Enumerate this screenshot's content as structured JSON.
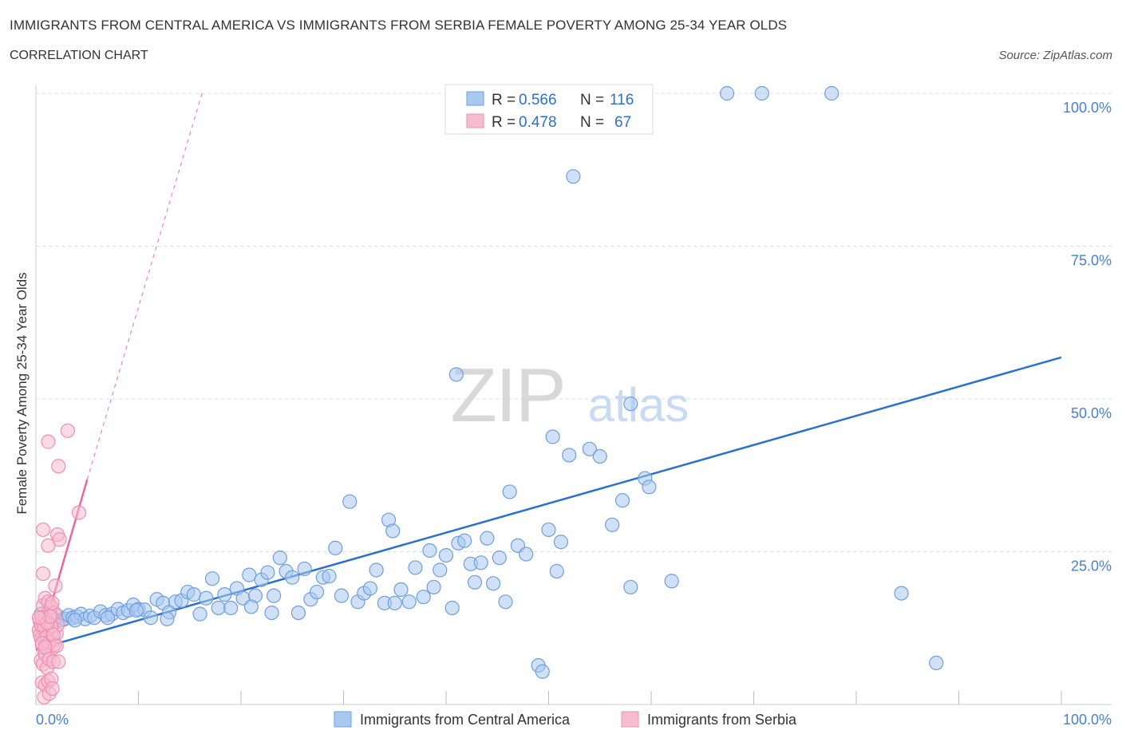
{
  "title": "IMMIGRANTS FROM CENTRAL AMERICA VS IMMIGRANTS FROM SERBIA FEMALE POVERTY AMONG 25-34 YEAR OLDS",
  "subtitle": "CORRELATION CHART",
  "source": "Source: ZipAtlas.com",
  "watermark": {
    "zip": "ZIP",
    "atlas": "atlas"
  },
  "colors": {
    "blue_fill": "#a9c8f0",
    "blue_stroke": "#6f9fdc",
    "blue_line": "#2b6fd1",
    "pink_fill": "#f6bcd0",
    "pink_stroke": "#ee8fb0",
    "pink_line": "#e8689a",
    "axis_label": "#4a7fd1",
    "grid": "#dddddd"
  },
  "stats_legend": {
    "rows": [
      {
        "r_label": "R = ",
        "r_value": "0.566",
        "n_label": "N = ",
        "n_value": "116"
      },
      {
        "r_label": "R = ",
        "r_value": "0.478",
        "n_label": "N = ",
        "n_value": "67"
      }
    ]
  },
  "chart_data": {
    "type": "scatter",
    "title": "IMMIGRANTS FROM CENTRAL AMERICA VS IMMIGRANTS FROM SERBIA FEMALE POVERTY AMONG 25-34 YEAR OLDS",
    "xlabel": "",
    "ylabel": "Female Poverty Among 25-34 Year Olds",
    "xlim": [
      0,
      100
    ],
    "ylim": [
      0,
      100
    ],
    "x_tick_labels": [
      "0.0%",
      "100.0%"
    ],
    "y_ticks": [
      25,
      50,
      75,
      100
    ],
    "y_tick_labels": [
      "25.0%",
      "50.0%",
      "75.0%",
      "100.0%"
    ],
    "grid": true,
    "legend_position": "bottom",
    "series": [
      {
        "name": "Immigrants from Central America",
        "R": 0.566,
        "N": 116,
        "trend": {
          "x": [
            0,
            100
          ],
          "y": [
            9.0,
            56.8
          ]
        },
        "points": [
          [
            0.5,
            14.8
          ],
          [
            0.8,
            13.6
          ],
          [
            1.0,
            14.6
          ],
          [
            1.2,
            14.0
          ],
          [
            1.5,
            14.3
          ],
          [
            1.8,
            13.9
          ],
          [
            2.1,
            14.5
          ],
          [
            2.5,
            13.8
          ],
          [
            2.8,
            14.0
          ],
          [
            3.2,
            14.6
          ],
          [
            3.6,
            14.2
          ],
          [
            4.0,
            14.4
          ],
          [
            4.4,
            14.8
          ],
          [
            4.8,
            14.0
          ],
          [
            5.3,
            14.5
          ],
          [
            5.7,
            14.2
          ],
          [
            6.3,
            15.2
          ],
          [
            6.8,
            14.6
          ],
          [
            7.4,
            14.8
          ],
          [
            8.0,
            15.6
          ],
          [
            8.5,
            15.0
          ],
          [
            9.0,
            15.4
          ],
          [
            9.5,
            16.3
          ],
          [
            10.0,
            15.6
          ],
          [
            10.6,
            15.5
          ],
          [
            11.2,
            14.2
          ],
          [
            11.8,
            17.2
          ],
          [
            12.4,
            16.6
          ],
          [
            13.0,
            15.1
          ],
          [
            13.6,
            16.8
          ],
          [
            14.2,
            17.0
          ],
          [
            14.8,
            18.4
          ],
          [
            15.4,
            18.0
          ],
          [
            16.0,
            14.8
          ],
          [
            16.6,
            17.4
          ],
          [
            17.2,
            20.6
          ],
          [
            17.8,
            15.8
          ],
          [
            18.4,
            18.0
          ],
          [
            19.0,
            15.8
          ],
          [
            19.6,
            19.0
          ],
          [
            20.2,
            17.4
          ],
          [
            20.8,
            21.2
          ],
          [
            21.4,
            17.8
          ],
          [
            22.0,
            20.4
          ],
          [
            22.6,
            21.6
          ],
          [
            23.2,
            17.8
          ],
          [
            23.8,
            24.0
          ],
          [
            24.4,
            21.8
          ],
          [
            25.0,
            20.8
          ],
          [
            25.6,
            15.0
          ],
          [
            26.2,
            22.2
          ],
          [
            26.8,
            17.2
          ],
          [
            27.4,
            18.4
          ],
          [
            28.0,
            20.8
          ],
          [
            28.6,
            21.0
          ],
          [
            29.2,
            25.6
          ],
          [
            29.8,
            17.8
          ],
          [
            30.6,
            33.2
          ],
          [
            31.4,
            16.8
          ],
          [
            32.0,
            18.2
          ],
          [
            32.6,
            19.0
          ],
          [
            33.2,
            22.0
          ],
          [
            34.0,
            16.6
          ],
          [
            34.4,
            30.2
          ],
          [
            34.8,
            28.4
          ],
          [
            35.6,
            18.8
          ],
          [
            36.4,
            16.8
          ],
          [
            37.0,
            22.4
          ],
          [
            37.8,
            17.6
          ],
          [
            38.4,
            25.2
          ],
          [
            38.8,
            19.2
          ],
          [
            39.4,
            22.0
          ],
          [
            40.0,
            24.4
          ],
          [
            40.6,
            15.8
          ],
          [
            41.2,
            26.4
          ],
          [
            41.8,
            26.8
          ],
          [
            42.4,
            23.0
          ],
          [
            42.8,
            20.0
          ],
          [
            43.4,
            23.2
          ],
          [
            44.0,
            27.2
          ],
          [
            44.6,
            19.8
          ],
          [
            45.2,
            24.0
          ],
          [
            45.8,
            16.8
          ],
          [
            46.2,
            34.8
          ],
          [
            47.0,
            26.0
          ],
          [
            47.8,
            24.6
          ],
          [
            49.0,
            6.4
          ],
          [
            49.4,
            5.4
          ],
          [
            50.0,
            28.6
          ],
          [
            50.4,
            43.8
          ],
          [
            50.8,
            21.8
          ],
          [
            51.2,
            26.6
          ],
          [
            52.0,
            40.8
          ],
          [
            52.4,
            86.4
          ],
          [
            54.0,
            41.8
          ],
          [
            55.0,
            40.6
          ],
          [
            56.2,
            29.4
          ],
          [
            57.2,
            33.4
          ],
          [
            58.0,
            19.2
          ],
          [
            58.0,
            49.2
          ],
          [
            59.4,
            37.0
          ],
          [
            59.8,
            35.6
          ],
          [
            62.0,
            20.2
          ],
          [
            67.4,
            100.0
          ],
          [
            70.8,
            100.0
          ],
          [
            77.6,
            100.0
          ],
          [
            84.4,
            18.2
          ],
          [
            87.8,
            6.8
          ],
          [
            41.0,
            54.0
          ],
          [
            35.0,
            16.6
          ],
          [
            23.0,
            15.0
          ],
          [
            21.0,
            16.0
          ],
          [
            12.8,
            14.0
          ],
          [
            9.8,
            15.4
          ],
          [
            7.0,
            14.2
          ],
          [
            3.8,
            13.8
          ]
        ]
      },
      {
        "name": "Immigrants from Serbia",
        "R": 0.478,
        "N": 67,
        "trend": {
          "x": [
            0.3,
            5.0
          ],
          "y": [
            9.5,
            36.8
          ]
        },
        "trend_ext": {
          "x": [
            5.0,
            16.2
          ],
          "y": [
            36.8,
            100.0
          ]
        },
        "points": [
          [
            0.3,
            12.2
          ],
          [
            0.4,
            13.6
          ],
          [
            0.5,
            10.8
          ],
          [
            0.6,
            12.6
          ],
          [
            0.6,
            9.8
          ],
          [
            0.7,
            11.2
          ],
          [
            0.8,
            13.0
          ],
          [
            0.8,
            8.8
          ],
          [
            0.9,
            12.0
          ],
          [
            1.0,
            10.4
          ],
          [
            1.0,
            14.6
          ],
          [
            1.1,
            11.8
          ],
          [
            1.2,
            9.6
          ],
          [
            1.2,
            13.2
          ],
          [
            1.3,
            12.4
          ],
          [
            1.4,
            10.8
          ],
          [
            1.4,
            15.4
          ],
          [
            1.5,
            11.6
          ],
          [
            1.6,
            9.2
          ],
          [
            1.6,
            13.8
          ],
          [
            0.5,
            7.2
          ],
          [
            0.7,
            6.6
          ],
          [
            0.9,
            8.2
          ],
          [
            1.1,
            6.0
          ],
          [
            1.3,
            7.4
          ],
          [
            1.7,
            7.0
          ],
          [
            0.6,
            3.6
          ],
          [
            0.9,
            3.2
          ],
          [
            1.2,
            3.8
          ],
          [
            1.5,
            4.2
          ],
          [
            0.8,
            1.2
          ],
          [
            1.3,
            1.8
          ],
          [
            1.6,
            2.6
          ],
          [
            0.7,
            16.2
          ],
          [
            0.9,
            17.4
          ],
          [
            1.2,
            16.8
          ],
          [
            1.5,
            16.0
          ],
          [
            0.7,
            21.4
          ],
          [
            1.9,
            19.4
          ],
          [
            1.2,
            26.0
          ],
          [
            0.7,
            28.6
          ],
          [
            2.1,
            27.8
          ],
          [
            2.3,
            27.0
          ],
          [
            1.2,
            43.0
          ],
          [
            3.1,
            44.8
          ],
          [
            2.2,
            39.0
          ],
          [
            4.2,
            31.4
          ],
          [
            1.8,
            9.8
          ],
          [
            2.0,
            11.6
          ],
          [
            2.1,
            13.0
          ],
          [
            1.8,
            15.0
          ],
          [
            0.4,
            11.4
          ],
          [
            0.5,
            13.0
          ],
          [
            0.6,
            14.2
          ],
          [
            0.8,
            12.8
          ],
          [
            1.0,
            11.0
          ],
          [
            1.3,
            10.2
          ],
          [
            1.5,
            12.8
          ],
          [
            1.7,
            11.4
          ],
          [
            2.0,
            9.6
          ],
          [
            2.2,
            7.0
          ],
          [
            0.6,
            10.0
          ],
          [
            0.9,
            9.4
          ],
          [
            1.1,
            13.4
          ],
          [
            1.4,
            14.4
          ],
          [
            1.6,
            16.6
          ],
          [
            0.3,
            14.2
          ]
        ]
      }
    ]
  }
}
